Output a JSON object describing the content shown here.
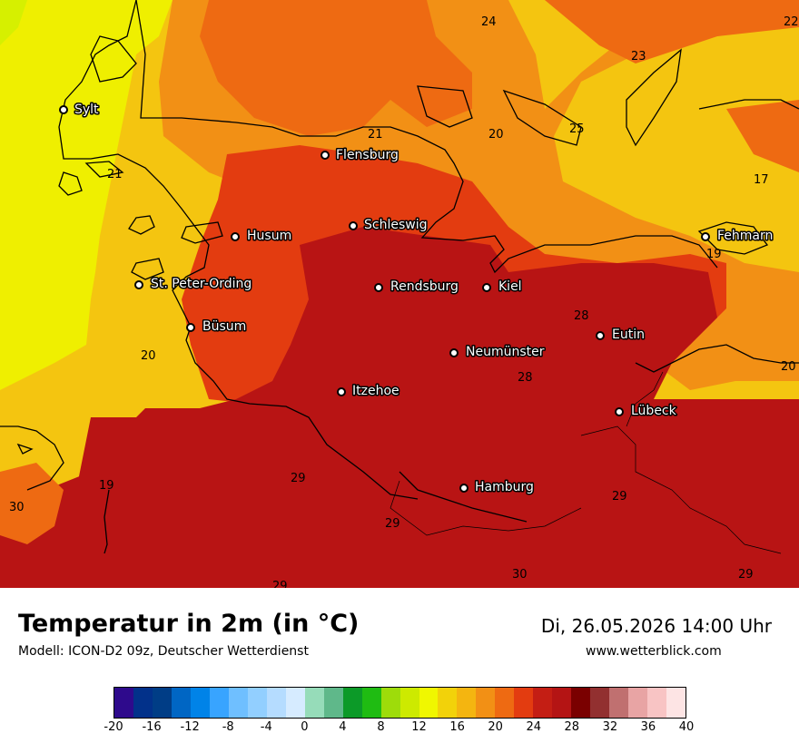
{
  "map": {
    "cities": [
      {
        "name": "Sylt"
      },
      {
        "name": "Flensburg"
      },
      {
        "name": "Schleswig"
      },
      {
        "name": "Husum"
      },
      {
        "name": "St. Peter-Ording"
      },
      {
        "name": "Rendsburg"
      },
      {
        "name": "Kiel"
      },
      {
        "name": "Büsum"
      },
      {
        "name": "Eutin"
      },
      {
        "name": "Neumünster"
      },
      {
        "name": "Itzehoe"
      },
      {
        "name": "Lübeck"
      },
      {
        "name": "Hamburg"
      },
      {
        "name": "Fehmarn"
      }
    ],
    "temperature_labels": [
      "24",
      "22",
      "23",
      "21",
      "20",
      "25",
      "21",
      "17",
      "19",
      "28",
      "20",
      "28",
      "20",
      "19",
      "29",
      "30",
      "29",
      "29",
      "29",
      "30",
      "29"
    ],
    "colors": {
      "t16": "#efef00",
      "t20": "#f4c510",
      "t22": "#f29015",
      "t24": "#ee6a12",
      "t26": "#e33c10",
      "t28": "#b81414",
      "yellowgreen": "#d6f000",
      "ocean_green": "#a5e02a"
    }
  },
  "header": {
    "title": "Temperatur in 2m (in °C)",
    "model": "Modell: ICON-D2 09z, Deutscher Wetterdienst",
    "datetime": "Di, 26.05.2026 14:00 Uhr",
    "website": "www.wetterblick.com"
  },
  "legend": {
    "colors": [
      "#2e0a8c",
      "#02318a",
      "#003d86",
      "#0066c4",
      "#0083e8",
      "#38a4ff",
      "#6fbfff",
      "#92cfff",
      "#b5dcff",
      "#d6ebff",
      "#96dcb9",
      "#5fb88a",
      "#0c9a28",
      "#1fbc12",
      "#9edc0a",
      "#cdea00",
      "#f0f700",
      "#f2d20a",
      "#f4b510",
      "#f29015",
      "#ee6a12",
      "#e33c10",
      "#c41e14",
      "#b41414",
      "#7a0000",
      "#923030",
      "#c07070",
      "#e8a4a4",
      "#f8c4c4",
      "#fde4e4"
    ],
    "ticks": [
      "-20",
      "-16",
      "-12",
      "-8",
      "-4",
      "0",
      "4",
      "8",
      "12",
      "16",
      "20",
      "24",
      "28",
      "32",
      "36",
      "40"
    ]
  }
}
